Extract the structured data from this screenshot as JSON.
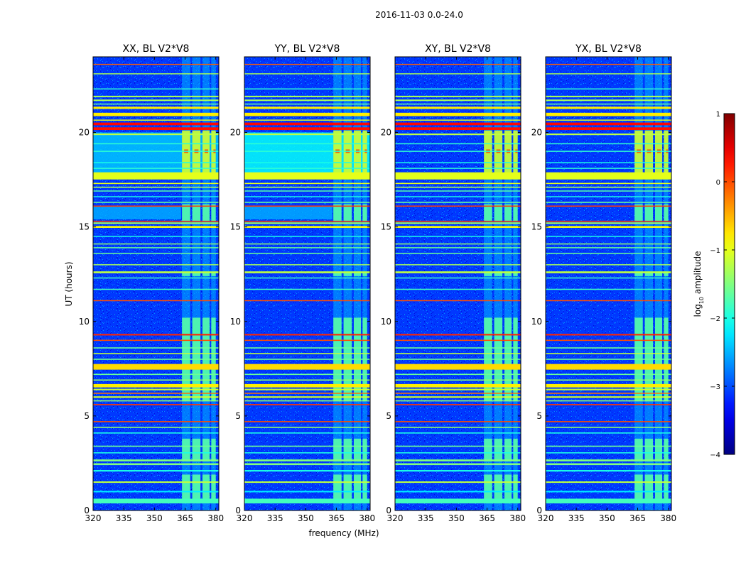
{
  "figure": {
    "suptitle": "2016-11-03 0.0-24.0"
  },
  "chart_data": {
    "type": "heatmap",
    "title": "2016-11-03 0.0-24.0",
    "xlabel": "frequency (MHz)",
    "ylabel": "UT (hours)",
    "xlim": [
      320,
      381.5
    ],
    "ylim": [
      0,
      24
    ],
    "xticks": [
      320,
      335,
      350,
      365,
      380
    ],
    "yticks": [
      0,
      5,
      10,
      15,
      20
    ],
    "colorbar": {
      "label": "log₁₀ amplitude",
      "label_main": "log",
      "label_sub": "10",
      "label_rest": " amplitude",
      "range": [
        -4,
        1
      ],
      "ticks": [
        -4,
        -3,
        -2,
        -1,
        0,
        1
      ],
      "tick_labels": [
        "−4",
        "−3",
        "−2",
        "−1",
        "0",
        "1"
      ],
      "colormap": "jet"
    },
    "panels": [
      {
        "title": "XX, BL V2*V8",
        "polarization": "XX"
      },
      {
        "title": "YY, BL V2*V8",
        "polarization": "YY"
      },
      {
        "title": "XY, BL V2*V8",
        "polarization": "XY"
      },
      {
        "title": "YX, BL V2*V8",
        "polarization": "YX"
      }
    ],
    "rfi_block": {
      "freq_range_mhz": [
        363.5,
        380
      ],
      "channels_mhz": [
        [
          363.5,
          367.5
        ],
        [
          368.5,
          372.5
        ],
        [
          373.5,
          377.0
        ],
        [
          377.8,
          380.0
        ]
      ],
      "active_hours": [
        [
          0.5,
          1.9
        ],
        [
          2.6,
          3.8
        ],
        [
          5.8,
          10.2
        ],
        [
          12.4,
          12.6
        ],
        [
          15.3,
          16.2
        ],
        [
          17.7,
          20.1
        ]
      ]
    },
    "horizontal_bands": [
      {
        "ut": 0.5,
        "level": -1.8,
        "thickness_h": 0.25
      },
      {
        "ut": 1.0,
        "level": -2.2,
        "thickness_h": 0.08
      },
      {
        "ut": 1.5,
        "level": -1.2,
        "thickness_h": 0.08
      },
      {
        "ut": 2.1,
        "level": -2.0,
        "thickness_h": 0.08
      },
      {
        "ut": 2.45,
        "level": -1.5,
        "thickness_h": 0.1
      },
      {
        "ut": 2.65,
        "level": -1.5,
        "thickness_h": 0.1
      },
      {
        "ut": 3.05,
        "level": -2.0,
        "thickness_h": 0.06
      },
      {
        "ut": 3.4,
        "level": -1.6,
        "thickness_h": 0.06
      },
      {
        "ut": 4.1,
        "level": -2.0,
        "thickness_h": 0.06
      },
      {
        "ut": 4.4,
        "level": -1.4,
        "thickness_h": 0.06
      },
      {
        "ut": 4.7,
        "level": 0.0,
        "thickness_h": 0.04
      },
      {
        "ut": 5.6,
        "level": 0.1,
        "thickness_h": 0.06
      },
      {
        "ut": 5.8,
        "level": -1.4,
        "thickness_h": 0.06
      },
      {
        "ut": 6.0,
        "level": -1.1,
        "thickness_h": 0.08
      },
      {
        "ut": 6.2,
        "level": -0.2,
        "thickness_h": 0.06
      },
      {
        "ut": 6.4,
        "level": -1.1,
        "thickness_h": 0.08
      },
      {
        "ut": 6.6,
        "level": -0.8,
        "thickness_h": 0.18
      },
      {
        "ut": 6.9,
        "level": -1.4,
        "thickness_h": 0.06
      },
      {
        "ut": 7.2,
        "level": -1.6,
        "thickness_h": 0.06
      },
      {
        "ut": 7.6,
        "level": -0.7,
        "thickness_h": 0.3
      },
      {
        "ut": 8.0,
        "level": -1.6,
        "thickness_h": 0.06
      },
      {
        "ut": 8.3,
        "level": -1.2,
        "thickness_h": 0.06
      },
      {
        "ut": 8.6,
        "level": -1.6,
        "thickness_h": 0.06
      },
      {
        "ut": 9.0,
        "level": 0.0,
        "thickness_h": 0.06
      },
      {
        "ut": 9.3,
        "level": 0.2,
        "thickness_h": 0.08
      },
      {
        "ut": 11.1,
        "level": 0.0,
        "thickness_h": 0.04
      },
      {
        "ut": 11.7,
        "level": -1.8,
        "thickness_h": 0.05
      },
      {
        "ut": 12.3,
        "level": -1.8,
        "thickness_h": 0.05
      },
      {
        "ut": 12.6,
        "level": -1.2,
        "thickness_h": 0.1
      },
      {
        "ut": 13.0,
        "level": -1.3,
        "thickness_h": 0.05
      },
      {
        "ut": 13.6,
        "level": -1.6,
        "thickness_h": 0.05
      },
      {
        "ut": 13.9,
        "level": -1.6,
        "thickness_h": 0.05
      },
      {
        "ut": 14.1,
        "level": -1.4,
        "thickness_h": 0.05
      },
      {
        "ut": 14.5,
        "level": -2.0,
        "thickness_h": 0.05
      },
      {
        "ut": 15.0,
        "level": -0.9,
        "thickness_h": 0.1
      },
      {
        "ut": 15.2,
        "level": -1.3,
        "thickness_h": 0.08
      },
      {
        "ut": 15.3,
        "level": 0.1,
        "thickness_h": 0.05
      },
      {
        "ut": 16.1,
        "level": 0.1,
        "thickness_h": 0.06
      },
      {
        "ut": 16.3,
        "level": -1.6,
        "thickness_h": 0.05
      },
      {
        "ut": 16.6,
        "level": -2.0,
        "thickness_h": 0.05
      },
      {
        "ut": 16.9,
        "level": -1.7,
        "thickness_h": 0.05
      },
      {
        "ut": 17.1,
        "level": -1.3,
        "thickness_h": 0.06
      },
      {
        "ut": 17.3,
        "level": -1.0,
        "thickness_h": 0.06
      },
      {
        "ut": 17.7,
        "level": -1.0,
        "thickness_h": 0.38
      },
      {
        "ut": 18.1,
        "level": -1.9,
        "thickness_h": 0.05
      },
      {
        "ut": 18.4,
        "level": -2.0,
        "thickness_h": 0.05
      },
      {
        "ut": 19.0,
        "level": -1.9,
        "thickness_h": 0.05
      },
      {
        "ut": 19.4,
        "level": -1.9,
        "thickness_h": 0.05
      },
      {
        "ut": 19.9,
        "level": -1.2,
        "thickness_h": 0.08
      },
      {
        "ut": 20.2,
        "level": 0.3,
        "thickness_h": 0.14
      },
      {
        "ut": 20.45,
        "level": 0.35,
        "thickness_h": 0.14
      },
      {
        "ut": 20.65,
        "level": -1.0,
        "thickness_h": 0.05
      },
      {
        "ut": 20.95,
        "level": -0.8,
        "thickness_h": 0.18
      },
      {
        "ut": 21.3,
        "level": -0.8,
        "thickness_h": 0.12
      },
      {
        "ut": 21.5,
        "level": -1.6,
        "thickness_h": 0.05
      },
      {
        "ut": 21.7,
        "level": -1.3,
        "thickness_h": 0.08
      },
      {
        "ut": 21.9,
        "level": -1.3,
        "thickness_h": 0.08
      },
      {
        "ut": 22.3,
        "level": -1.9,
        "thickness_h": 0.05
      },
      {
        "ut": 23.1,
        "level": -1.3,
        "thickness_h": 0.05
      },
      {
        "ut": 23.6,
        "level": -0.1,
        "thickness_h": 0.04
      }
    ],
    "background_level": -3.1
  }
}
